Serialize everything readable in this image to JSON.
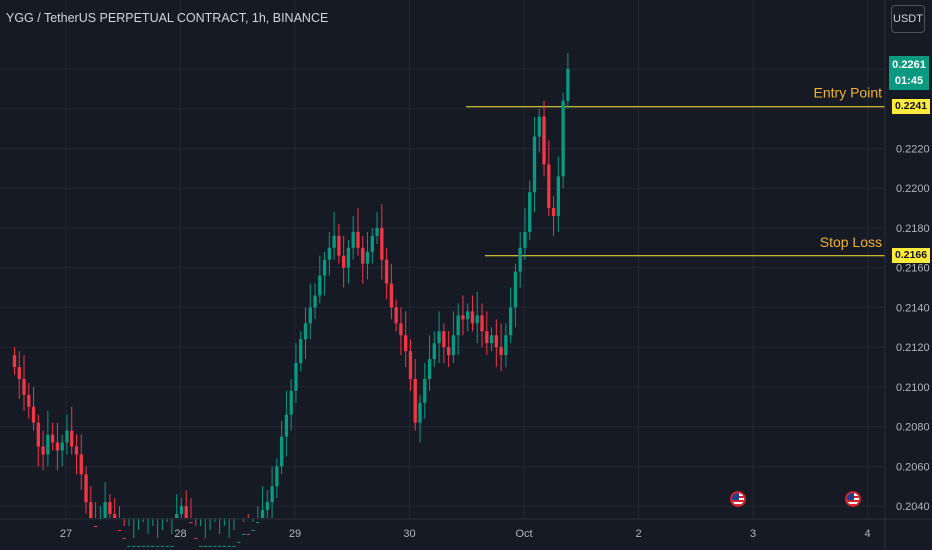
{
  "header": {
    "title": "YGG / TetherUS PERPETUAL CONTRACT, 1h, BINANCE",
    "currency_button": "USDT"
  },
  "price_badge": {
    "price": "0.2261",
    "countdown": "01:45"
  },
  "colors": {
    "up": "#089981",
    "down": "#f23645",
    "level": "#ffeb3b",
    "level_text": "#f0b232",
    "grid": "#232733"
  },
  "chart_data": {
    "type": "candlestick",
    "title": "YGG / TetherUS PERPETUAL CONTRACT, 1h, BINANCE",
    "ylim": [
      0.2024,
      0.2272
    ],
    "yticks": [
      "0.2040",
      "0.2060",
      "0.2080",
      "0.2100",
      "0.2120",
      "0.2140",
      "0.2160",
      "0.2180",
      "0.2200",
      "0.2220",
      "0.2240",
      "0.2260"
    ],
    "xticks": [
      {
        "label": "27",
        "day": 27
      },
      {
        "label": "28",
        "day": 28
      },
      {
        "label": "29",
        "day": 29
      },
      {
        "label": "30",
        "day": 30
      },
      {
        "label": "Oct",
        "day": 31
      },
      {
        "label": "2",
        "day": 32
      },
      {
        "label": "3",
        "day": 33
      },
      {
        "label": "4",
        "day": 34
      }
    ],
    "candles_per_day": 24,
    "start_day": 26.55,
    "closes": [
      0.211,
      0.2104,
      0.2096,
      0.209,
      0.2082,
      0.207,
      0.2066,
      0.2076,
      0.2072,
      0.2068,
      0.2072,
      0.2078,
      0.207,
      0.2066,
      0.2056,
      0.2042,
      0.203,
      0.2024,
      0.2034,
      0.2042,
      0.2036,
      0.2028,
      0.2024,
      0.202,
      0.202,
      0.202,
      0.202,
      0.202,
      0.202,
      0.202,
      0.202,
      0.202,
      0.202,
      0.202,
      0.2036,
      0.204,
      0.2032,
      0.2024,
      0.202,
      0.202,
      0.202,
      0.202,
      0.202,
      0.202,
      0.202,
      0.202,
      0.202,
      0.2022,
      0.2026,
      0.2024,
      0.2028,
      0.2032,
      0.2038,
      0.2042,
      0.205,
      0.206,
      0.2075,
      0.2086,
      0.2098,
      0.2112,
      0.2124,
      0.2132,
      0.214,
      0.2146,
      0.2156,
      0.2164,
      0.217,
      0.2176,
      0.2166,
      0.216,
      0.217,
      0.2178,
      0.217,
      0.2162,
      0.2168,
      0.2176,
      0.218,
      0.2164,
      0.2152,
      0.214,
      0.2132,
      0.2126,
      0.2118,
      0.2104,
      0.2082,
      0.2092,
      0.2104,
      0.2114,
      0.2122,
      0.2128,
      0.212,
      0.2116,
      0.2126,
      0.2136,
      0.2134,
      0.2138,
      0.2132,
      0.2136,
      0.2128,
      0.2122,
      0.2126,
      0.212,
      0.2116,
      0.2126,
      0.214,
      0.2158,
      0.217,
      0.2178,
      0.2198,
      0.2226,
      0.2236,
      0.2212,
      0.219,
      0.2186,
      0.2206,
      0.2244,
      0.226
    ],
    "levels": [
      {
        "name": "Entry Point",
        "price": 0.2241,
        "label": "0.2241"
      },
      {
        "name": "Stop Loss",
        "price": 0.2166,
        "label": "0.2166"
      }
    ],
    "events": [
      {
        "day": 32.87
      },
      {
        "day": 33.87
      }
    ],
    "grid": true
  }
}
